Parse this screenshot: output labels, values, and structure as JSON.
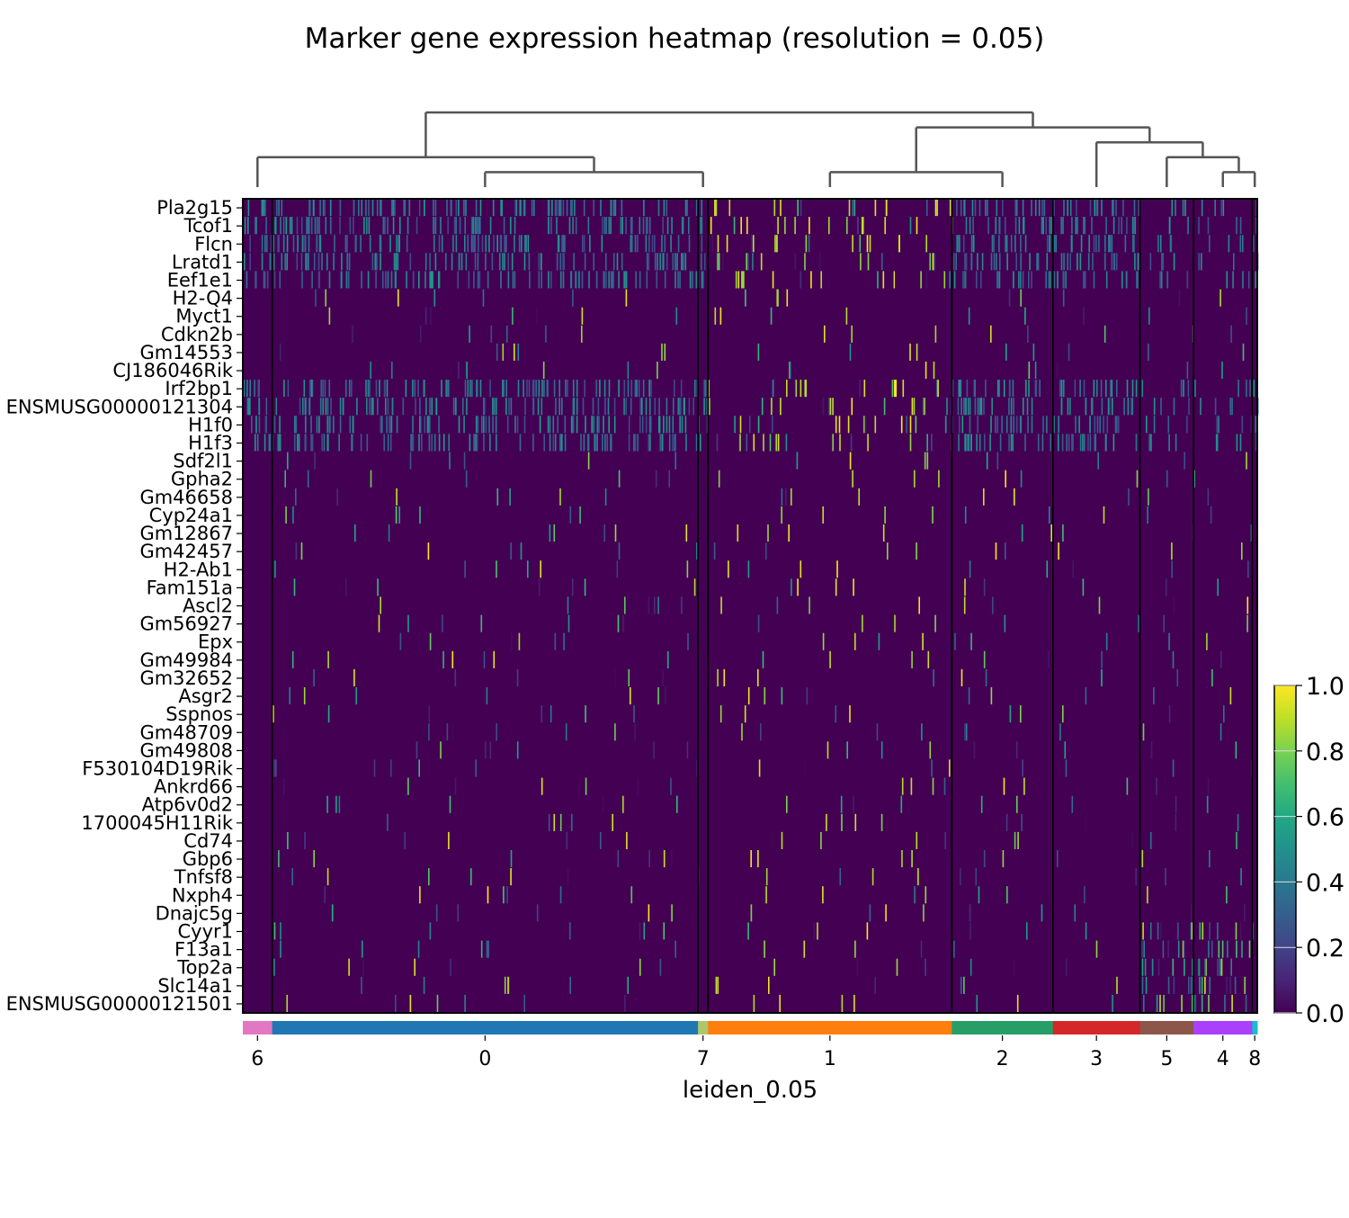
{
  "chart_data": {
    "type": "heatmap",
    "title": "Marker gene expression heatmap (resolution = 0.05)",
    "xlabel": "leiden_0.05",
    "ylabel": "",
    "colormap": "viridis",
    "value_range": [
      0,
      1
    ],
    "colorbar_ticks": [
      "0.0",
      "0.2",
      "0.4",
      "0.6",
      "0.8",
      "1.0"
    ],
    "genes": [
      "Pla2g15",
      "Tcof1",
      "Flcn",
      "Lratd1",
      "Eef1e1",
      "H2-Q4",
      "Myct1",
      "Cdkn2b",
      "Gm14553",
      "CJ186046Rik",
      "Irf2bp1",
      "ENSMUSG00000121304",
      "H1f0",
      "H1f3",
      "Sdf2l1",
      "Gpha2",
      "Gm46658",
      "Cyp24a1",
      "Gm12867",
      "Gm42457",
      "H2-Ab1",
      "Fam151a",
      "Ascl2",
      "Gm56927",
      "Epx",
      "Gm49984",
      "Gm32652",
      "Asgr2",
      "Sspnos",
      "Gm48709",
      "Gm49808",
      "F530104D19Rik",
      "Ankrd66",
      "Atp6v0d2",
      "1700045H11Rik",
      "Cd74",
      "Gbp6",
      "Tnfsf8",
      "Nxph4",
      "Dnajc5g",
      "Cyyr1",
      "F13a1",
      "Top2a",
      "Slc14a1",
      "ENSMUSG00000121501"
    ],
    "groups": [
      {
        "name": "6",
        "cell_fraction": 0.029,
        "color": "#e377c2"
      },
      {
        "name": "0",
        "cell_fraction": 0.421,
        "color": "#1f77b4"
      },
      {
        "name": "7",
        "cell_fraction": 0.01,
        "color": "#aec76b"
      },
      {
        "name": "1",
        "cell_fraction": 0.241,
        "color": "#ff7f0e"
      },
      {
        "name": "2",
        "cell_fraction": 0.1,
        "color": "#279e68"
      },
      {
        "name": "3",
        "cell_fraction": 0.086,
        "color": "#d62728"
      },
      {
        "name": "5",
        "cell_fraction": 0.053,
        "color": "#8c564b"
      },
      {
        "name": "4",
        "cell_fraction": 0.058,
        "color": "#aa40fc"
      },
      {
        "name": "8",
        "cell_fraction": 0.005,
        "color": "#17becf"
      }
    ],
    "dendrogram": "((6,(0,7)),((1,2),(3,(5,(4,8)))))",
    "background_expression": 0.0,
    "sparse_expression_note": "most cells ~0; scattered high-expression cells"
  }
}
